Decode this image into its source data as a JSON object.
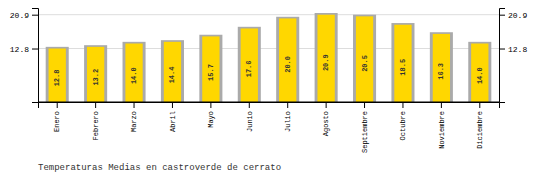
{
  "chart_data": {
    "type": "bar",
    "title": "Temperaturas Medias en castroverde de cerrato",
    "categories": [
      "Enero",
      "Febrero",
      "Marzo",
      "Abril",
      "Mayo",
      "Junio",
      "Julio",
      "Agosto",
      "Septiembre",
      "Octubre",
      "Noviembre",
      "Diciembre"
    ],
    "series": [
      {
        "color": "#AAAAAA",
        "values": [
          13.2,
          13.6,
          14.4,
          14.8,
          16.1,
          18.0,
          20.4,
          21.3,
          20.9,
          18.9,
          16.7,
          14.4
        ]
      },
      {
        "color": "#FFD700",
        "values": [
          12.8,
          13.2,
          14.0,
          14.4,
          15.7,
          17.6,
          20.0,
          20.9,
          20.5,
          18.5,
          16.3,
          14.0
        ],
        "data_labels": true,
        "value_labels": [
          "12.8",
          "13.2",
          "14.0",
          "14.4",
          "15.7",
          "17.6",
          "20.0",
          "20.9",
          "20.5",
          "18.5",
          "16.3",
          "14.0"
        ]
      }
    ],
    "ylim": [
      0,
      22.5
    ],
    "yticks": [
      12.8,
      20.9
    ],
    "grid": true
  }
}
